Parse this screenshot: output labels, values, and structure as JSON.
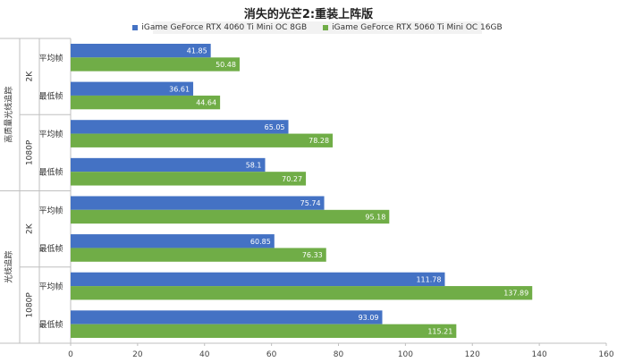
{
  "chart_data": {
    "type": "bar",
    "orientation": "horizontal",
    "title": "消失的光芒2:重装上阵版",
    "xlim": [
      0,
      160
    ],
    "xticks": [
      0,
      20,
      40,
      60,
      80,
      100,
      120,
      140,
      160
    ],
    "grid": false,
    "legend_position": "top",
    "groups": [
      {
        "label": "高质量光线追踪",
        "subgroups": [
          {
            "label": "2K",
            "categories": [
              "平均帧",
              "最低帧"
            ]
          },
          {
            "label": "1080P",
            "categories": [
              "平均帧",
              "最低帧"
            ]
          }
        ]
      },
      {
        "label": "光线追踪",
        "subgroups": [
          {
            "label": "2K",
            "categories": [
              "平均帧",
              "最低帧"
            ]
          },
          {
            "label": "1080P",
            "categories": [
              "平均帧",
              "最低帧"
            ]
          }
        ]
      }
    ],
    "series": [
      {
        "name": "iGame GeForce RTX 4060 Ti Mini OC 8GB",
        "color": "#4472C4",
        "values": [
          41.85,
          36.61,
          65.05,
          58.1,
          75.74,
          60.85,
          111.78,
          93.09
        ]
      },
      {
        "name": "iGame GeForce RTX 5060 Ti Mini OC 16GB",
        "color": "#70AD47",
        "values": [
          50.48,
          44.64,
          78.28,
          70.27,
          95.18,
          76.33,
          137.89,
          115.21
        ]
      }
    ]
  }
}
